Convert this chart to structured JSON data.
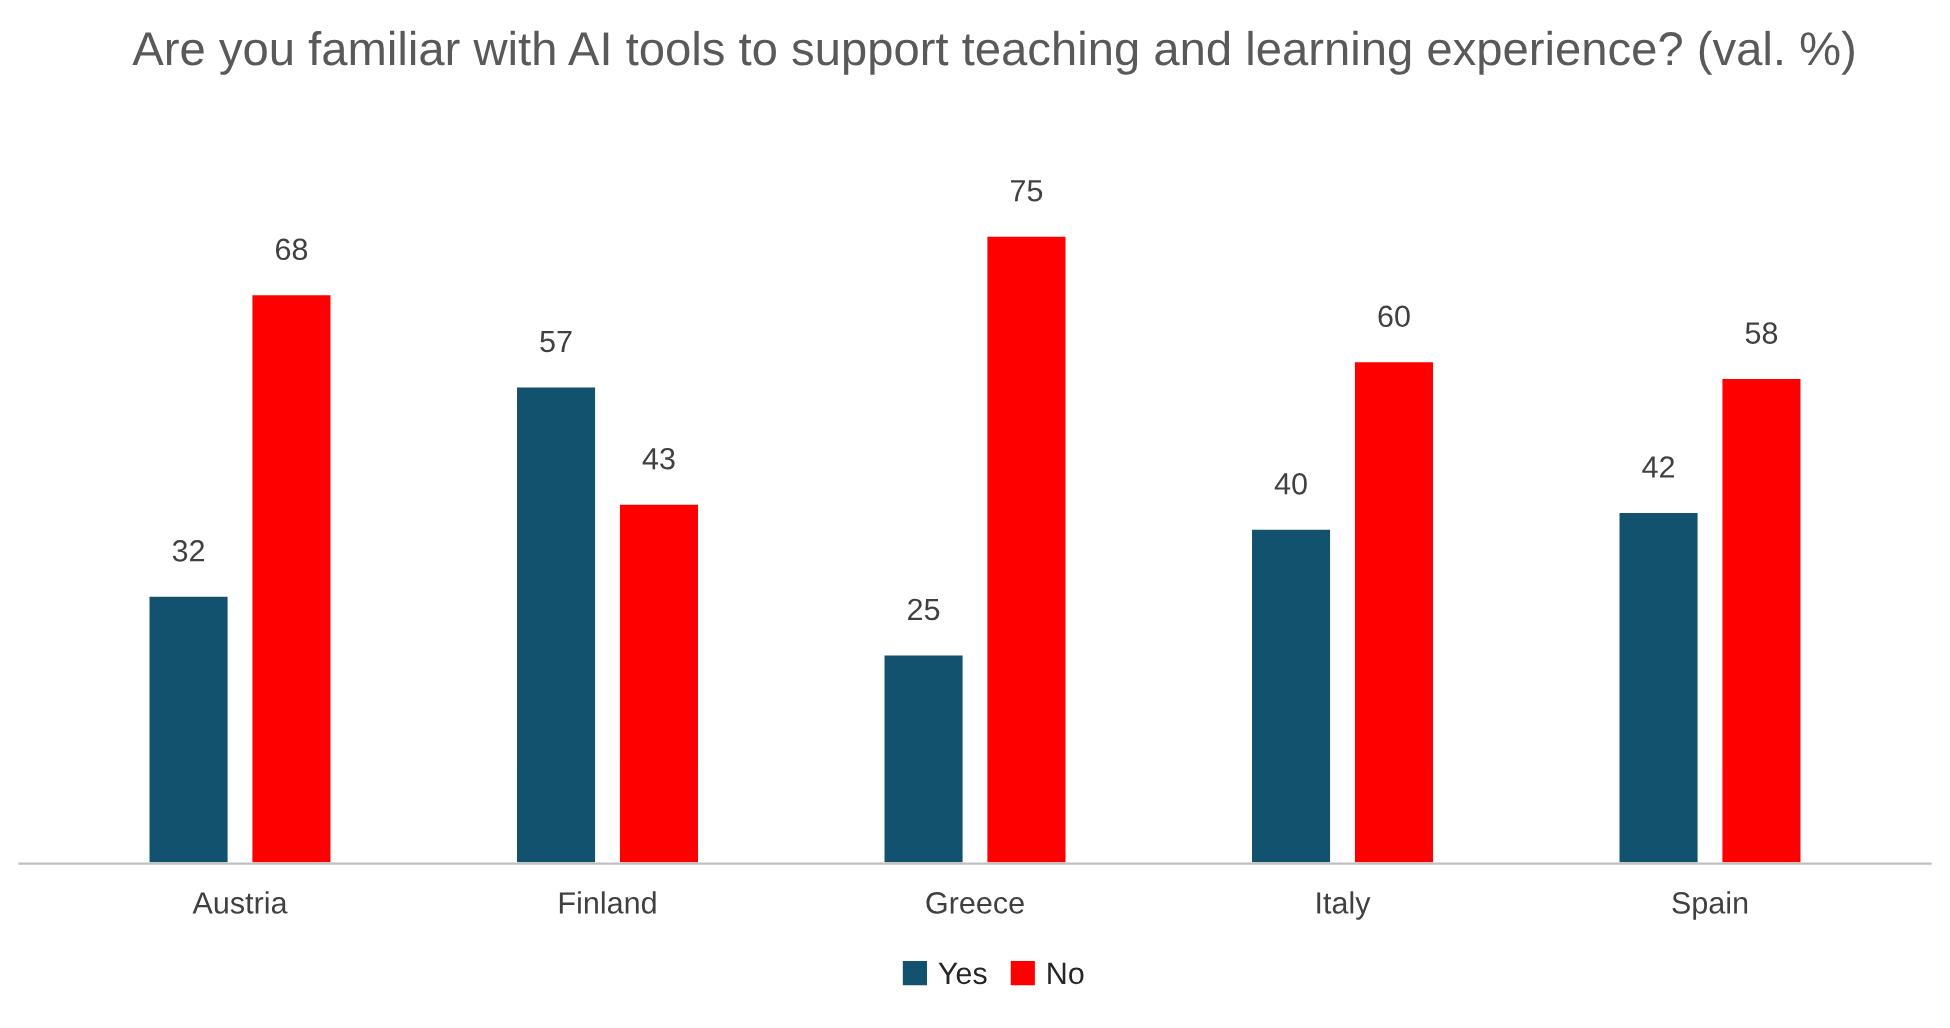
{
  "chart_data": {
    "type": "bar",
    "title": "Are you familiar with AI tools to support teaching and learning experience? (val. %)",
    "categories": [
      "Austria",
      "Finland",
      "Greece",
      "Italy",
      "Spain"
    ],
    "series": [
      {
        "name": "Yes",
        "color": "#12526f",
        "values": [
          32,
          57,
          25,
          40,
          42
        ]
      },
      {
        "name": "No",
        "color": "#ff0000",
        "values": [
          68,
          43,
          75,
          60,
          58
        ]
      }
    ],
    "data_labels": true,
    "grid": false,
    "legend": "bottom"
  }
}
